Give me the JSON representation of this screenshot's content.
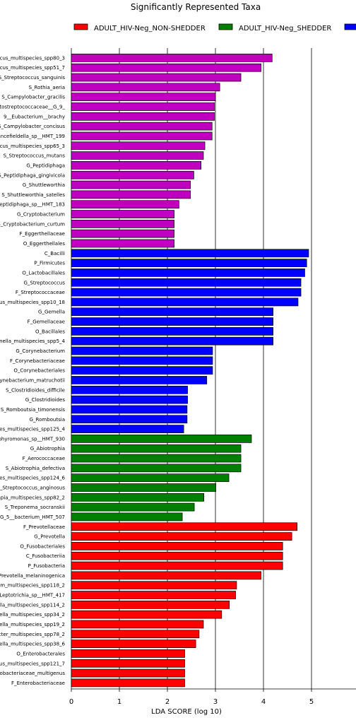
{
  "chart_data": {
    "type": "bar",
    "orientation": "horizontal",
    "title": "Significantly Represented Taxa",
    "xlabel": "LDA SCORE (log 10)",
    "ylabel": "",
    "xlim": [
      0,
      5.5
    ],
    "xticks": [
      0,
      1,
      2,
      3,
      4,
      5
    ],
    "grid": "vertical",
    "legend_position": "top",
    "legend": [
      {
        "name": "ADULT_HIV-Neg_NON-SHEDDER",
        "color": "#ff0000"
      },
      {
        "name": "ADULT_HIV-Neg_SHEDDER",
        "color": "#008000"
      },
      {
        "name": "",
        "color": "#0000ff"
      }
    ],
    "group_colors": {
      "A": "#c000c0",
      "B": "#0000ff",
      "C": "#008000",
      "D": "#ff0000"
    },
    "bars": [
      {
        "label": "cus_multispecies_spp80_3",
        "value": 4.18,
        "group": "A"
      },
      {
        "label": "ccus_multispecies_spp51_7",
        "value": 3.95,
        "group": "A"
      },
      {
        "label": "S_Streptococcus_sanguinis",
        "value": 3.53,
        "group": "A"
      },
      {
        "label": "S_Rothia_aeria",
        "value": 3.09,
        "group": "A"
      },
      {
        "label": "S_Campylobacter_gracilis",
        "value": 3.0,
        "group": "A"
      },
      {
        "label": "tostreptococcaceae__G_9_",
        "value": 2.98,
        "group": "A"
      },
      {
        "label": "9__Eubacterium__brachy",
        "value": 2.98,
        "group": "A"
      },
      {
        "label": "S_Campylobacter_concisus",
        "value": 2.93,
        "group": "A"
      },
      {
        "label": "ancefieldella_sp__HMT_199",
        "value": 2.93,
        "group": "A"
      },
      {
        "label": "ccus_multispecies_spp65_3",
        "value": 2.78,
        "group": "A"
      },
      {
        "label": "S_Streptococcus_mutans",
        "value": 2.75,
        "group": "A"
      },
      {
        "label": "G_Peptidiphaga",
        "value": 2.7,
        "group": "A"
      },
      {
        "label": "S_Peptidiphaga_gingivicola",
        "value": 2.55,
        "group": "A"
      },
      {
        "label": "G_Shuttleworthia",
        "value": 2.48,
        "group": "A"
      },
      {
        "label": "S_Shuttleworthia_satelles",
        "value": 2.48,
        "group": "A"
      },
      {
        "label": "eptidiphaga_sp__HMT_183",
        "value": 2.24,
        "group": "A"
      },
      {
        "label": "G_Cryptobacterium",
        "value": 2.14,
        "group": "A"
      },
      {
        "label": "S_Cryptobacterium_curtum",
        "value": 2.14,
        "group": "A"
      },
      {
        "label": "F_Eggerthellaceae",
        "value": 2.14,
        "group": "A"
      },
      {
        "label": "O_Eggerthellales",
        "value": 2.14,
        "group": "A"
      },
      {
        "label": "C_Bacilli",
        "value": 4.94,
        "group": "B"
      },
      {
        "label": "P_Firmicutes",
        "value": 4.9,
        "group": "B"
      },
      {
        "label": "O_Lactobacillales",
        "value": 4.86,
        "group": "B"
      },
      {
        "label": "G_Streptococcus",
        "value": 4.78,
        "group": "B"
      },
      {
        "label": "F_Streptococcaceae",
        "value": 4.78,
        "group": "B"
      },
      {
        "label": "cus_multispecies_spp10_18",
        "value": 4.72,
        "group": "B"
      },
      {
        "label": "G_Gemella",
        "value": 4.2,
        "group": "B"
      },
      {
        "label": "F_Gemellaceae",
        "value": 4.2,
        "group": "B"
      },
      {
        "label": "O_Bacillales",
        "value": 4.2,
        "group": "B"
      },
      {
        "label": "nella_multispecies_spp5_4",
        "value": 4.2,
        "group": "B"
      },
      {
        "label": "G_Corynebacterium",
        "value": 2.94,
        "group": "B"
      },
      {
        "label": "F_Corynebacteriaceae",
        "value": 2.94,
        "group": "B"
      },
      {
        "label": "O_Corynebacteriales",
        "value": 2.94,
        "group": "B"
      },
      {
        "label": "orynebacterium_matruchotii",
        "value": 2.82,
        "group": "B"
      },
      {
        "label": "S_Clostridioides_difficile",
        "value": 2.42,
        "group": "B"
      },
      {
        "label": "G_Clostridioides",
        "value": 2.42,
        "group": "B"
      },
      {
        "label": "S_Romboutsia_timonensis",
        "value": 2.41,
        "group": "B"
      },
      {
        "label": "G_Romboutsia",
        "value": 2.41,
        "group": "B"
      },
      {
        "label": "es_multispecies_spp125_4",
        "value": 2.34,
        "group": "B"
      },
      {
        "label": "phyromonas_sp__HMT_930",
        "value": 3.75,
        "group": "C"
      },
      {
        "label": "G_Abiotrophia",
        "value": 3.53,
        "group": "C"
      },
      {
        "label": "F_Aerococcaceae",
        "value": 3.53,
        "group": "C"
      },
      {
        "label": "S_Abiotrophia_defectiva",
        "value": 3.53,
        "group": "C"
      },
      {
        "label": "es_multispecies_spp124_6",
        "value": 3.28,
        "group": "C"
      },
      {
        "label": "_Streptococcus_anginosus",
        "value": 3.01,
        "group": "C"
      },
      {
        "label": "apia_multispecies_spp82_2",
        "value": 2.76,
        "group": "C"
      },
      {
        "label": "S_Treponema_socranskii",
        "value": 2.56,
        "group": "C"
      },
      {
        "label": "G_5__bacterium_HMT_507",
        "value": 2.31,
        "group": "C"
      },
      {
        "label": "F_Prevotellaceae",
        "value": 4.7,
        "group": "D"
      },
      {
        "label": "G_Prevotella",
        "value": 4.59,
        "group": "D"
      },
      {
        "label": "O_Fusobacteriales",
        "value": 4.4,
        "group": "D"
      },
      {
        "label": "C_Fusobacteriia",
        "value": 4.4,
        "group": "D"
      },
      {
        "label": "P_Fusobacteria",
        "value": 4.4,
        "group": "D"
      },
      {
        "label": "Prevotella_melaninogenica",
        "value": 3.95,
        "group": "D"
      },
      {
        "label": "m_multispecies_spp118_2",
        "value": 3.44,
        "group": "D"
      },
      {
        "label": "Leptotrichia_sp__HMT_417",
        "value": 3.42,
        "group": "D"
      },
      {
        "label": "lla_multispecies_spp114_2",
        "value": 3.29,
        "group": "D"
      },
      {
        "label": "ella_multispecies_spp34_2",
        "value": 3.13,
        "group": "D"
      },
      {
        "label": "ella_multispecies_spp19_2",
        "value": 2.75,
        "group": "D"
      },
      {
        "label": "cter_multispecies_spp78_2",
        "value": 2.66,
        "group": "D"
      },
      {
        "label": "ella_multispecies_spp38_6",
        "value": 2.59,
        "group": "D"
      },
      {
        "label": "O_Enterobacterales",
        "value": 2.36,
        "group": "D"
      },
      {
        "label": "us_multispecies_spp121_7",
        "value": 2.36,
        "group": "D"
      },
      {
        "label": "obacteriaceae_multigenus",
        "value": 2.36,
        "group": "D"
      },
      {
        "label": "F_Enterobacteriaceae",
        "value": 2.36,
        "group": "D"
      }
    ]
  }
}
